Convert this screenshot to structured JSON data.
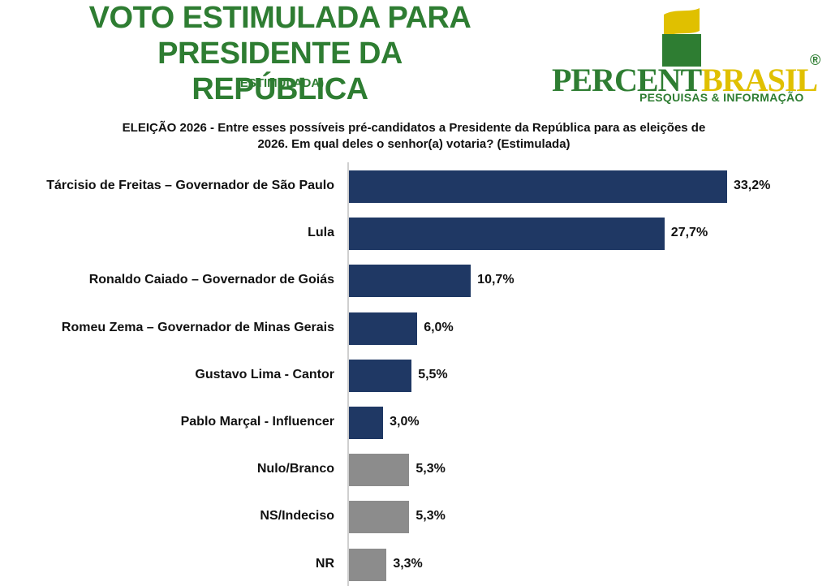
{
  "header": {
    "title_line1": "VOTO ESTIMULADA PARA",
    "title_line2": "PRESIDENTE DA REPÚBLICA",
    "subtitle": "(ESTIMULADA)"
  },
  "logo": {
    "word_part1": "PERCENT",
    "word_part2": "BRASIL",
    "registered": "®",
    "tagline": "PESQUISAS & INFORMAÇÃO"
  },
  "question": {
    "line1": "ELEIÇÃO 2026 - Entre esses possíveis pré-candidatos a Presidente da República para as eleições de",
    "line2": "2026. Em qual deles o senhor(a) votaria? (Estimulada)"
  },
  "colors": {
    "title_green": "#2e7d32",
    "logo_yellow": "#e0c000",
    "candidate_bar": "#1f3864",
    "other_bar": "#8c8c8c"
  },
  "chart_data": {
    "type": "bar",
    "orientation": "horizontal",
    "categories": [
      "Tárcisio de Freitas – Governador de São Paulo",
      "Lula",
      "Ronaldo Caiado – Governador de Goiás",
      "Romeu Zema – Governador de Minas Gerais",
      "Gustavo Lima - Cantor",
      "Pablo Marçal - Influencer",
      "Nulo/Branco",
      "NS/Indeciso",
      "NR"
    ],
    "values": [
      33.2,
      27.7,
      10.7,
      6.0,
      5.5,
      3.0,
      5.3,
      5.3,
      3.3
    ],
    "value_labels": [
      "33,2%",
      "27,7%",
      "10,7%",
      "6,0%",
      "5,5%",
      "3,0%",
      "5,3%",
      "5,3%",
      "3,3%"
    ],
    "bar_color_keys": [
      "candidate_bar",
      "candidate_bar",
      "candidate_bar",
      "candidate_bar",
      "candidate_bar",
      "candidate_bar",
      "other_bar",
      "other_bar",
      "other_bar"
    ],
    "xlim": [
      0,
      35
    ],
    "grid": false,
    "legend": "none"
  }
}
